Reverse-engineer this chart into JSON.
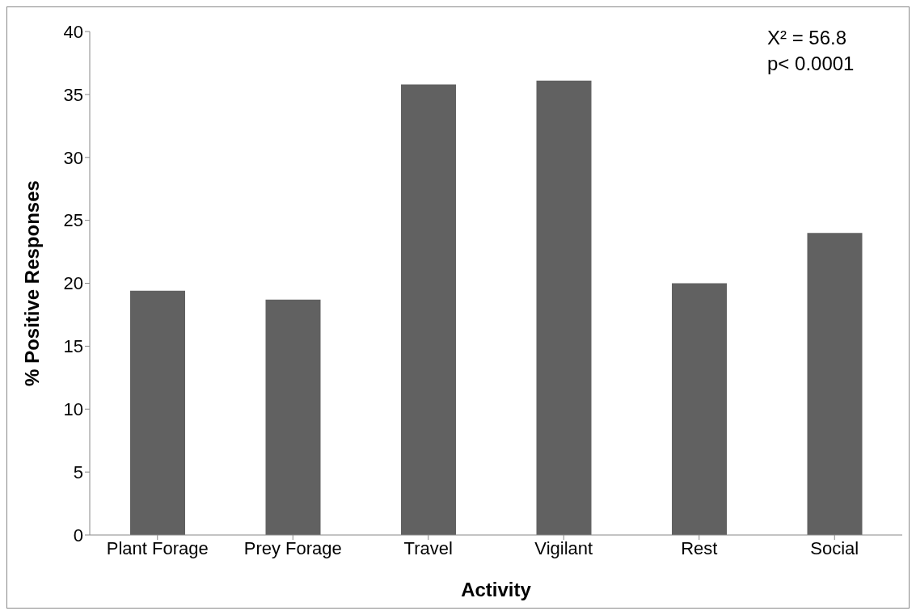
{
  "chart_data": {
    "type": "bar",
    "xlabel": "Activity",
    "ylabel": "% Positive Responses",
    "categories": [
      "Plant Forage",
      "Prey Forage",
      "Travel",
      "Vigilant",
      "Rest",
      "Social"
    ],
    "values": [
      19.4,
      18.7,
      35.8,
      36.1,
      20.0,
      24.0
    ],
    "color": "#616161",
    "ylim": [
      0,
      40
    ],
    "yticks": [
      0,
      5,
      10,
      15,
      20,
      25,
      30,
      35,
      40
    ],
    "grid": false,
    "annotations": [
      "X² = 56.8",
      "p< 0.0001"
    ]
  }
}
